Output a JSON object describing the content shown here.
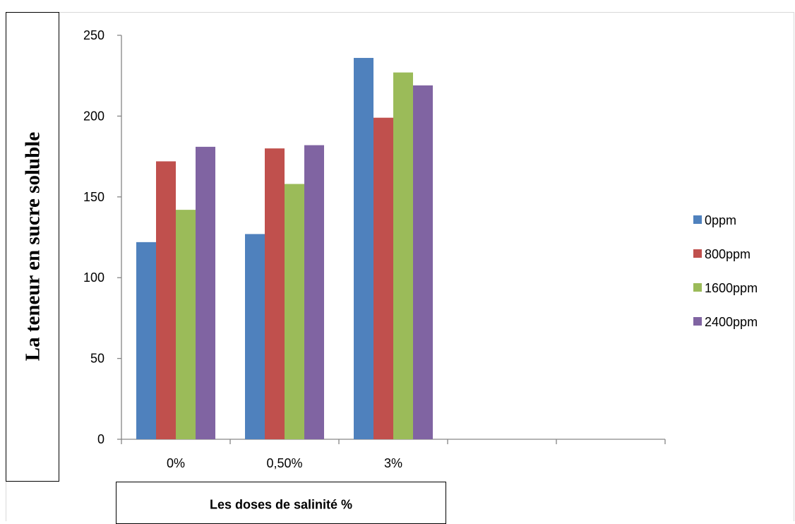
{
  "chart_data": {
    "type": "bar",
    "categories": [
      "0%",
      "0,50%",
      "3%",
      "",
      ""
    ],
    "series": [
      {
        "name": "0ppm",
        "color": "#4f81bd",
        "values": [
          122,
          127,
          236,
          null,
          null
        ]
      },
      {
        "name": "800ppm",
        "color": "#c0504d",
        "values": [
          172,
          180,
          199,
          null,
          null
        ]
      },
      {
        "name": "1600ppm",
        "color": "#9bbb59",
        "values": [
          142,
          158,
          227,
          null,
          null
        ]
      },
      {
        "name": "2400ppm",
        "color": "#8064a2",
        "values": [
          181,
          182,
          219,
          null,
          null
        ]
      }
    ],
    "ylim": [
      0,
      250
    ],
    "yticks": [
      0,
      50,
      100,
      150,
      200,
      250
    ],
    "xlabel": "Les doses  de salinité %",
    "ylabel": "La teneur en sucre soluble",
    "legend_position": "right",
    "grid": false
  }
}
